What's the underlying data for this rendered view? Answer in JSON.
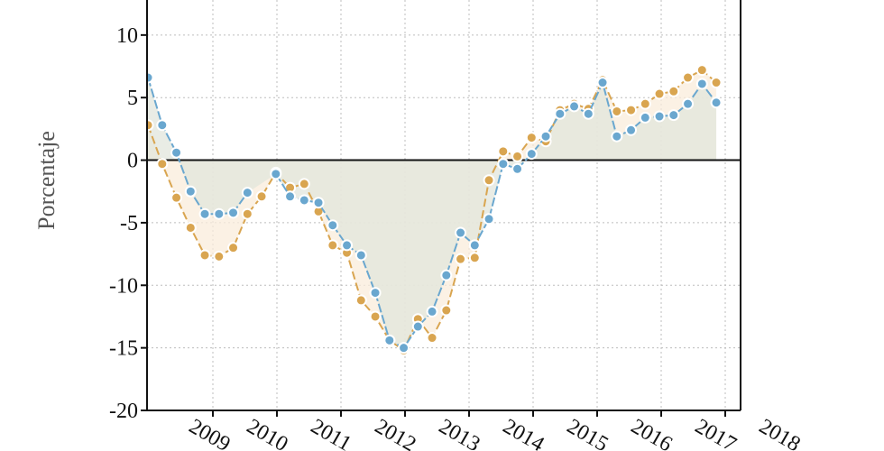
{
  "chart_data": {
    "type": "line",
    "title": "",
    "xlabel": "",
    "ylabel": "Porcentaje",
    "ylim": [
      -20,
      12.8
    ],
    "yticks": [
      -20,
      -15,
      -10,
      -5,
      0,
      5,
      10
    ],
    "xticks": [
      "2009",
      "2010",
      "2011",
      "2012",
      "2013",
      "2014",
      "2015",
      "2016",
      "2017",
      "2018"
    ],
    "grid": true,
    "legend": "none",
    "x_quarterly_start": "2008 T3",
    "series": [
      {
        "color": "#6aa7cf",
        "values": [
          6.6,
          2.8,
          0.6,
          -2.5,
          -4.3,
          -4.3,
          -4.2,
          -2.6,
          null,
          -1.1,
          -2.9,
          -3.2,
          -3.4,
          -5.2,
          -6.8,
          -7.6,
          -10.6,
          -14.4,
          -15.0,
          -13.3,
          -12.1,
          -9.2,
          -5.8,
          -6.8,
          -4.7,
          -0.3,
          -0.7,
          0.5,
          1.9,
          3.7,
          4.3,
          3.7,
          6.2,
          1.9,
          2.4,
          3.4,
          3.5,
          3.6,
          4.5,
          6.1,
          4.6
        ]
      },
      {
        "color": "#d9a550",
        "values": [
          2.8,
          -0.3,
          -3.0,
          -5.4,
          -7.6,
          -7.7,
          -7.0,
          -4.3,
          -2.9,
          -1.0,
          -2.2,
          -1.9,
          -4.1,
          -6.8,
          -7.4,
          -11.2,
          -12.5,
          -14.4,
          -15.2,
          -12.7,
          -14.2,
          -12.0,
          -7.9,
          -7.8,
          -1.6,
          0.7,
          0.3,
          1.8,
          1.5,
          4.0,
          4.5,
          4.1,
          6.4,
          3.9,
          4.0,
          4.5,
          5.3,
          5.5,
          6.6,
          7.2,
          6.2
        ]
      }
    ]
  }
}
